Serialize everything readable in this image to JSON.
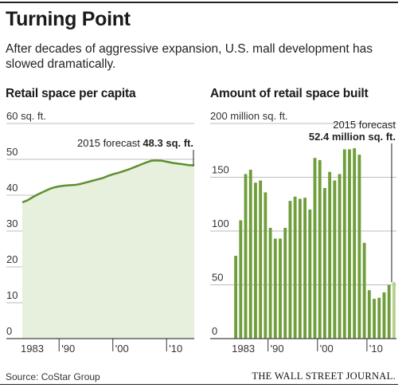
{
  "header": {
    "title": "Turning Point",
    "subtitle": "After decades of aggressive expansion, U.S. mall development has slowed dramatically."
  },
  "footer": {
    "source": "Source: CoStar Group",
    "credit": "THE WALL STREET JOURNAL."
  },
  "colors": {
    "fill": "#e6f0dc",
    "line": "#5e8f2f",
    "bar": "#6f9e3a",
    "bar_forecast": "#b6d08f",
    "grid": "#bdbdbd",
    "axis": "#444444"
  },
  "chart_data": [
    {
      "type": "area",
      "title": "Retail space per capita",
      "unit_label": "60 sq. ft.",
      "ylim": [
        0,
        60
      ],
      "yticks": [
        0,
        10,
        20,
        30,
        40,
        50
      ],
      "xlim": [
        1983,
        2015
      ],
      "xticks": [
        {
          "value": 1983,
          "label": "1983"
        },
        {
          "value": 1990,
          "label": "'90"
        },
        {
          "value": 2000,
          "label": "'00"
        },
        {
          "value": 2010,
          "label": "'10"
        }
      ],
      "x": [
        1983,
        1984,
        1985,
        1986,
        1987,
        1988,
        1989,
        1990,
        1991,
        1992,
        1993,
        1994,
        1995,
        1996,
        1997,
        1998,
        1999,
        2000,
        2001,
        2002,
        2003,
        2004,
        2005,
        2006,
        2007,
        2008,
        2009,
        2010,
        2011,
        2012,
        2013,
        2014,
        2015
      ],
      "y": [
        38.0,
        38.6,
        39.5,
        40.3,
        41.0,
        41.7,
        42.2,
        42.5,
        42.7,
        42.8,
        42.9,
        43.2,
        43.6,
        44.0,
        44.4,
        44.8,
        45.4,
        45.9,
        46.3,
        46.8,
        47.3,
        47.9,
        48.5,
        49.1,
        49.6,
        49.7,
        49.6,
        49.3,
        49.0,
        48.8,
        48.6,
        48.4,
        48.3
      ],
      "annotation": {
        "text": "2015 forecast",
        "value": "48.3 sq. ft."
      }
    },
    {
      "type": "bar",
      "title": "Amount of retail space built",
      "unit_label": "200 million sq. ft.",
      "ylim": [
        0,
        200
      ],
      "yticks": [
        0,
        50,
        100,
        150
      ],
      "xlim": [
        1983,
        2015
      ],
      "xticks": [
        {
          "value": 1983,
          "label": "1983"
        },
        {
          "value": 1990,
          "label": "'90"
        },
        {
          "value": 2000,
          "label": "'00"
        },
        {
          "value": 2010,
          "label": "'10"
        }
      ],
      "x": [
        1983,
        1984,
        1985,
        1986,
        1987,
        1988,
        1989,
        1990,
        1991,
        1992,
        1993,
        1994,
        1995,
        1996,
        1997,
        1998,
        1999,
        2000,
        2001,
        2002,
        2003,
        2004,
        2005,
        2006,
        2007,
        2008,
        2009,
        2010,
        2011,
        2012,
        2013,
        2014,
        2015
      ],
      "values": [
        77,
        110,
        153,
        157,
        145,
        147,
        136,
        103,
        93,
        93,
        103,
        128,
        132,
        130,
        131,
        120,
        168,
        166,
        140,
        155,
        147,
        153,
        176,
        176,
        177,
        171,
        89,
        45,
        37,
        38,
        43,
        50,
        52.4
      ],
      "forecast_index": 32,
      "annotation": {
        "text": "2015 forecast",
        "value": "52.4 million sq. ft."
      }
    }
  ]
}
